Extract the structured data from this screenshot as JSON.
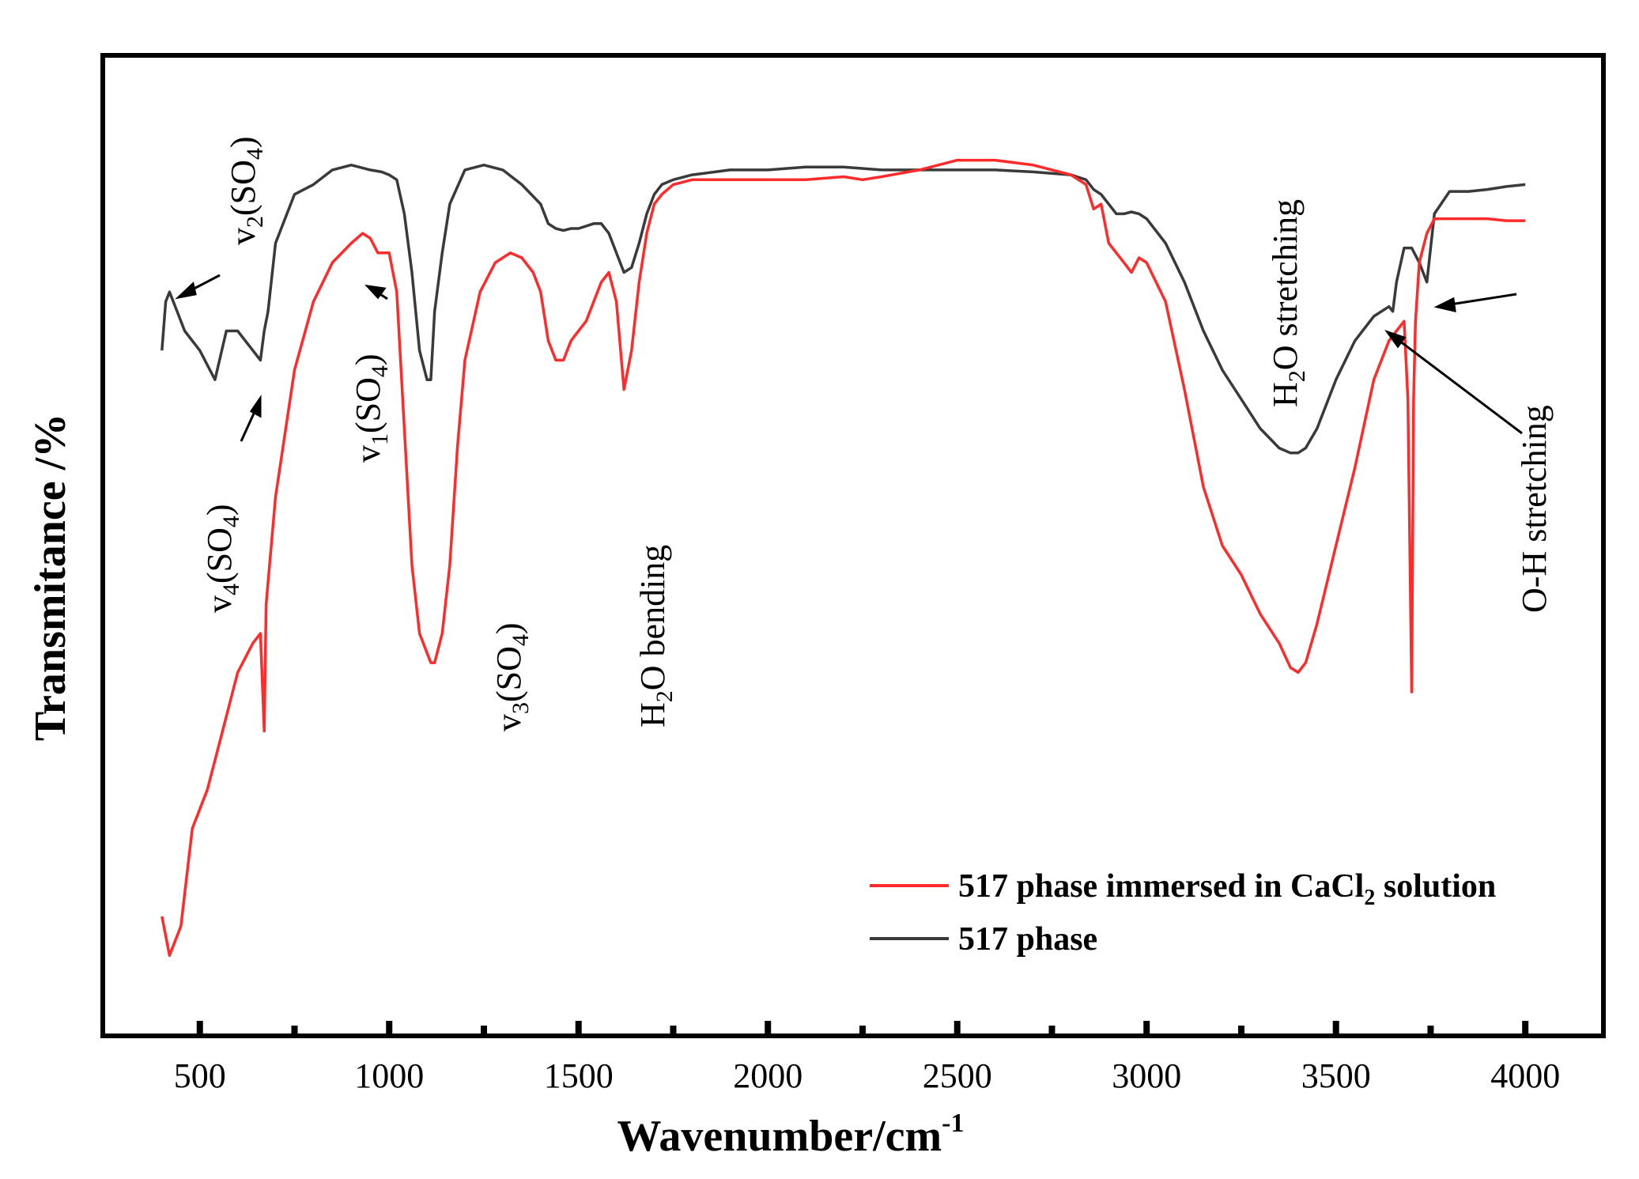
{
  "chart_data": {
    "type": "line",
    "title": "",
    "xlabel": "Wavenumber/cm",
    "xlabel_sup": "-1",
    "ylabel": "Transmitance /%",
    "xlim": [
      250,
      4200
    ],
    "ylim": [
      0,
      100
    ],
    "x_ticks": [
      500,
      1000,
      1500,
      2000,
      2500,
      3000,
      3500,
      4000
    ],
    "x_tick_labels": [
      "500",
      "1000",
      "1500",
      "2000",
      "2500",
      "3000",
      "3500",
      "4000"
    ],
    "grid": false,
    "legend_position": "bottom-right",
    "series": [
      {
        "name": "517 phase immersed in CaCl2 solution",
        "legend_main": "517 phase immersed in CaCl",
        "legend_sub": "2",
        "legend_tail": " solution",
        "color": "#ff2a2a",
        "x": [
          400,
          410,
          420,
          430,
          450,
          480,
          520,
          560,
          600,
          640,
          660,
          670,
          675,
          700,
          750,
          800,
          850,
          900,
          930,
          950,
          970,
          1000,
          1020,
          1040,
          1060,
          1080,
          1100,
          1110,
          1120,
          1140,
          1160,
          1180,
          1200,
          1240,
          1280,
          1320,
          1350,
          1380,
          1400,
          1420,
          1440,
          1460,
          1480,
          1500,
          1520,
          1540,
          1560,
          1580,
          1600,
          1620,
          1640,
          1660,
          1680,
          1700,
          1720,
          1750,
          1800,
          1850,
          1900,
          2000,
          2100,
          2200,
          2250,
          2300,
          2400,
          2500,
          2600,
          2700,
          2800,
          2840,
          2860,
          2880,
          2900,
          2920,
          2940,
          2960,
          2980,
          3000,
          3050,
          3100,
          3150,
          3200,
          3250,
          3300,
          3350,
          3380,
          3400,
          3420,
          3450,
          3500,
          3550,
          3600,
          3640,
          3660,
          3680,
          3690,
          3700,
          3705,
          3710,
          3720,
          3740,
          3760,
          3800,
          3850,
          3900,
          3950,
          4000
        ],
        "y": [
          12,
          10,
          8,
          9,
          11,
          21,
          25,
          31,
          37,
          40,
          41,
          31,
          44,
          55,
          68,
          75,
          79,
          81,
          82,
          81.5,
          80,
          80,
          76,
          62,
          48,
          41,
          39,
          38,
          38,
          41,
          48,
          60,
          69,
          76,
          79,
          80,
          79.5,
          78,
          76,
          71,
          69,
          69,
          71,
          72,
          73,
          75,
          77,
          78,
          75,
          66,
          70,
          77,
          82,
          85,
          86,
          87,
          87.5,
          87.5,
          87.5,
          87.5,
          87.5,
          87.8,
          87.5,
          87.8,
          88.5,
          89.5,
          89.5,
          89,
          88,
          87,
          84.5,
          85,
          81,
          80,
          79,
          78,
          79.5,
          79,
          75,
          66,
          56,
          50,
          47,
          43,
          40,
          37.5,
          37,
          38,
          42,
          50,
          58,
          67,
          71,
          72,
          73,
          65,
          35,
          65,
          73,
          79,
          82,
          83.5,
          83.5,
          83.5,
          83.5,
          83.3,
          83.3
        ]
      },
      {
        "name": "517 phase",
        "legend_main": "517 phase",
        "legend_sub": "",
        "legend_tail": "",
        "color": "#3a3a3a",
        "x": [
          400,
          410,
          420,
          440,
          460,
          500,
          540,
          570,
          600,
          640,
          660,
          670,
          680,
          700,
          750,
          800,
          850,
          900,
          950,
          980,
          1000,
          1020,
          1040,
          1060,
          1080,
          1100,
          1110,
          1120,
          1140,
          1160,
          1200,
          1250,
          1300,
          1350,
          1400,
          1420,
          1440,
          1460,
          1480,
          1500,
          1540,
          1560,
          1580,
          1600,
          1620,
          1640,
          1660,
          1680,
          1700,
          1720,
          1750,
          1800,
          1900,
          2000,
          2100,
          2200,
          2300,
          2400,
          2500,
          2600,
          2700,
          2800,
          2840,
          2860,
          2880,
          2900,
          2920,
          2940,
          2960,
          2980,
          3000,
          3050,
          3100,
          3150,
          3200,
          3250,
          3300,
          3350,
          3380,
          3400,
          3420,
          3450,
          3500,
          3550,
          3600,
          3640,
          3650,
          3660,
          3680,
          3700,
          3720,
          3740,
          3760,
          3800,
          3850,
          3900,
          3950,
          4000
        ],
        "y": [
          70,
          75,
          76,
          74,
          72,
          70,
          67,
          72,
          72,
          70,
          69,
          72,
          74,
          81,
          86,
          87,
          88.5,
          89,
          88.5,
          88.3,
          88,
          87.5,
          84,
          78,
          70,
          67,
          67,
          74,
          80,
          85,
          88.5,
          89,
          88.5,
          87,
          85,
          83,
          82.5,
          82.3,
          82.5,
          82.5,
          83,
          83,
          82,
          80,
          78,
          78.5,
          81,
          84,
          86,
          87,
          87.5,
          88,
          88.5,
          88.5,
          88.8,
          88.8,
          88.5,
          88.5,
          88.5,
          88.5,
          88.3,
          88,
          87.5,
          86.5,
          86,
          85,
          84,
          84,
          84.2,
          84,
          83.5,
          81,
          77,
          72,
          68,
          65,
          62,
          60,
          59.5,
          59.5,
          60,
          62,
          67,
          71,
          73.5,
          74.5,
          74,
          77,
          80.5,
          80.5,
          79,
          77,
          84,
          86.3,
          86.3,
          86.5,
          86.8,
          87
        ]
      }
    ],
    "annotations": [
      {
        "text": "v",
        "sub": "2",
        "tail": "(SO",
        "sub2": "4",
        "end": ")",
        "role": "v2"
      },
      {
        "text": "v",
        "sub": "4",
        "tail": "(SO",
        "sub2": "4",
        "end": ")",
        "role": "v4"
      },
      {
        "text": "v",
        "sub": "1",
        "tail": "(SO",
        "sub2": "4",
        "end": ")",
        "role": "v1"
      },
      {
        "text": "v",
        "sub": "3",
        "tail": "(SO",
        "sub2": "4",
        "end": ")",
        "role": "v3"
      },
      {
        "text": "H",
        "sub": "2",
        "tail": "O bending",
        "sub2": "",
        "end": "",
        "role": "h2o-bend"
      },
      {
        "text": "H",
        "sub": "2",
        "tail": "O stretching",
        "sub2": "",
        "end": "",
        "role": "h2o-stretch"
      },
      {
        "text": "O-H stretching",
        "sub": "",
        "tail": "",
        "sub2": "",
        "end": "",
        "role": "oh-stretch"
      }
    ]
  }
}
